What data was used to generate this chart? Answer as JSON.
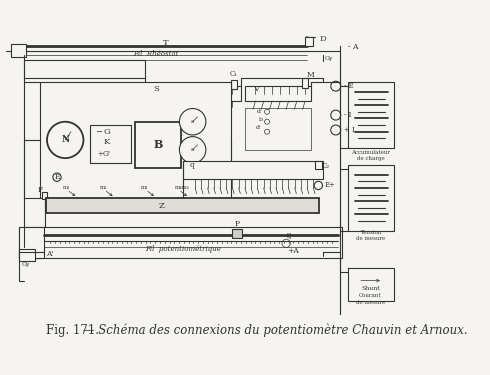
{
  "caption_full": "Fig. 171. — Schéma des connexions du potentiomètre Chauvin et Arnoux.",
  "caption_fig": "Fig. 171.",
  "caption_rest": " — Schéma des connexions du potentiomètre Chauvin et Arnoux.",
  "bg_color": "#f5f4f0",
  "fg_color": "#333333",
  "fig_width": 4.9,
  "fig_height": 3.75,
  "dpi": 100
}
